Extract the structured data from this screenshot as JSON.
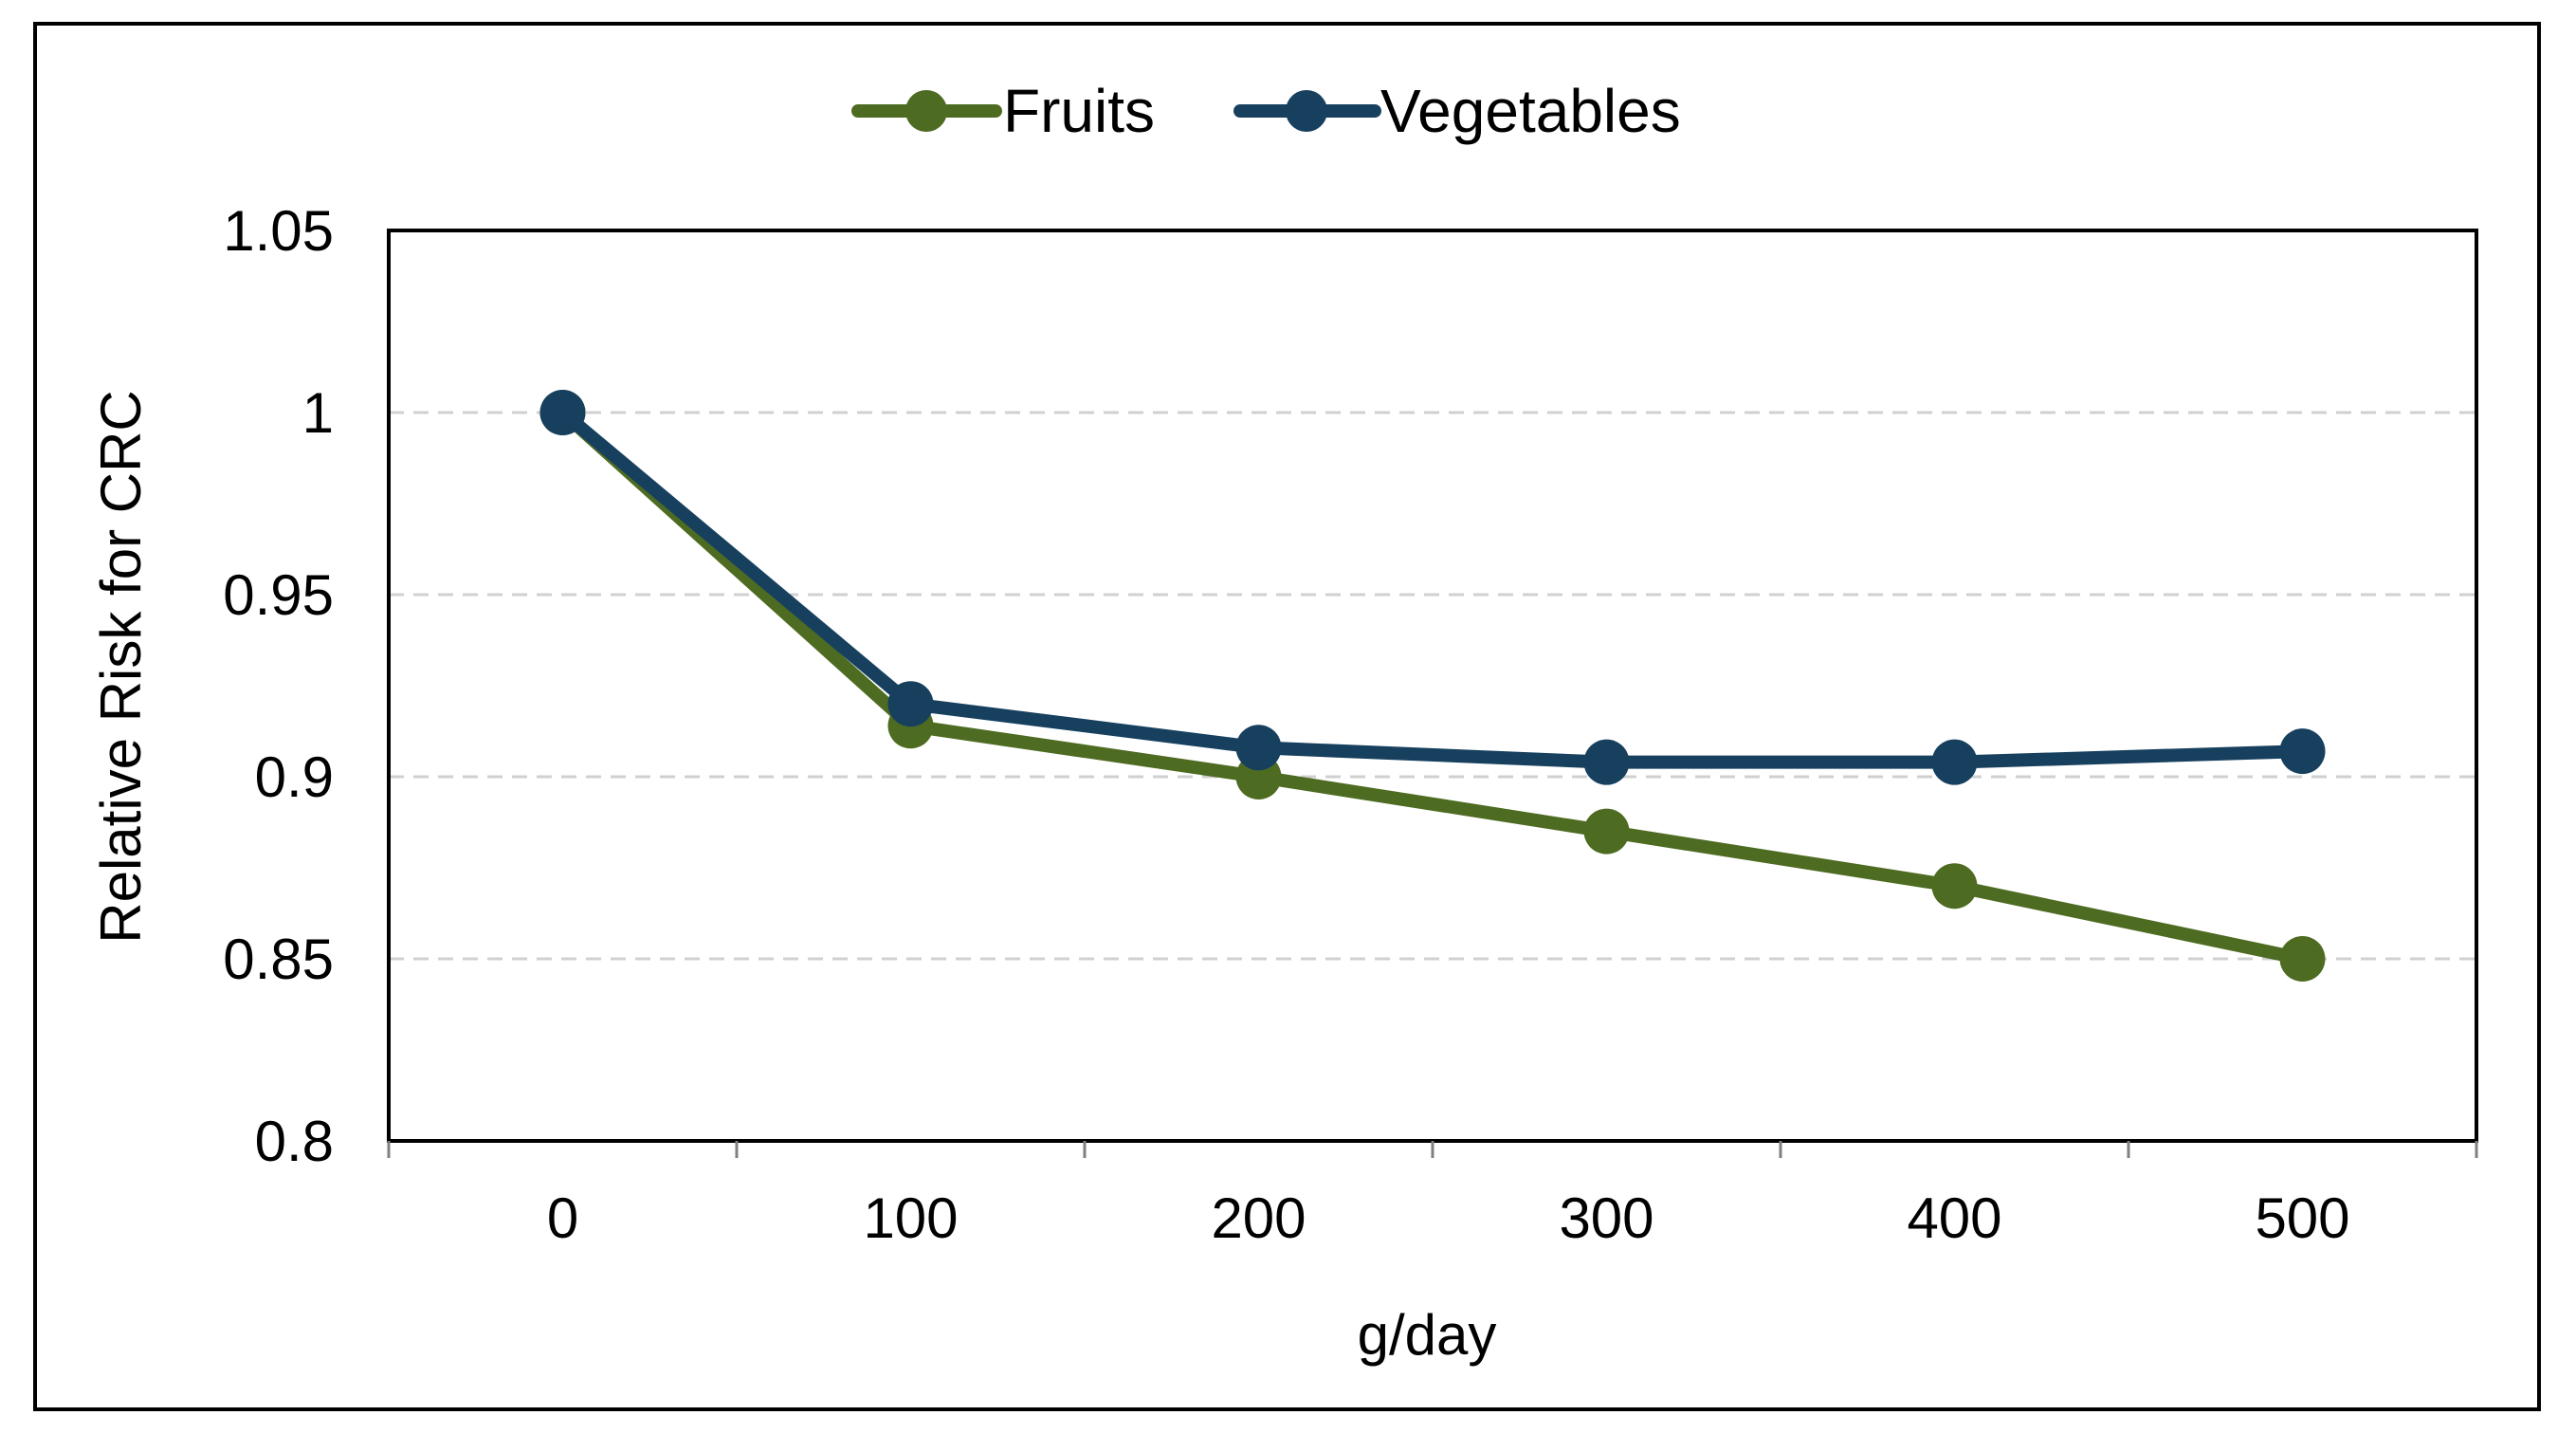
{
  "chart_data": {
    "type": "line",
    "title": "",
    "xlabel": "g/day",
    "ylabel": "Relative Risk for CRC",
    "x": [
      0,
      100,
      200,
      300,
      400,
      500
    ],
    "x_tick_labels": [
      "0",
      "100",
      "200",
      "300",
      "400",
      "500"
    ],
    "y_tick_labels": [
      "0.8",
      "0.85",
      "0.9",
      "0.95",
      "1",
      "1.05"
    ],
    "y_ticks": [
      0.8,
      0.85,
      0.9,
      0.95,
      1.0,
      1.05
    ],
    "ylim": [
      0.8,
      1.05
    ],
    "xlim": [
      -50,
      550
    ],
    "grid": true,
    "legend_position": "top-center",
    "series": [
      {
        "name": "Fruits",
        "color": "#4e6b22",
        "values": [
          1.0,
          0.914,
          0.9,
          0.885,
          0.87,
          0.85
        ]
      },
      {
        "name": "Vegetables",
        "color": "#17405f",
        "values": [
          1.0,
          0.92,
          0.908,
          0.904,
          0.904,
          0.907
        ]
      }
    ]
  }
}
